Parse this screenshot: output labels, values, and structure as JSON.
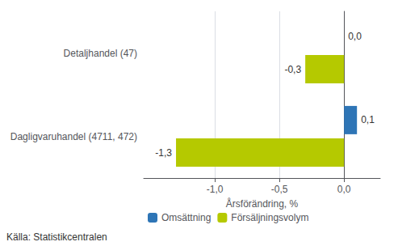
{
  "chart_data": {
    "type": "bar",
    "orientation": "horizontal",
    "categories": [
      "Detaljhandel (47)",
      "Dagligvaruhandel (4711, 472)"
    ],
    "series": [
      {
        "name": "Omsättning",
        "color": "#2e75b6",
        "values": [
          0.0,
          0.1
        ],
        "value_labels": [
          "0,0",
          "0,1"
        ]
      },
      {
        "name": "Försäljningsvolym",
        "color": "#b5c900",
        "values": [
          -0.3,
          -1.3
        ],
        "value_labels": [
          "-0,3",
          "-1,3"
        ]
      }
    ],
    "xlabel": "Årsförändring, %",
    "xlim": [
      -1.55,
      0.28
    ],
    "xticks": [
      {
        "value": -1.0,
        "label": "-1,0"
      },
      {
        "value": -0.5,
        "label": "-0,5"
      },
      {
        "value": 0.0,
        "label": "0,0"
      }
    ],
    "grid": true,
    "legend": "lower left",
    "data_labels": true,
    "annotations": [
      "Källa: Statistikcentralen"
    ]
  }
}
